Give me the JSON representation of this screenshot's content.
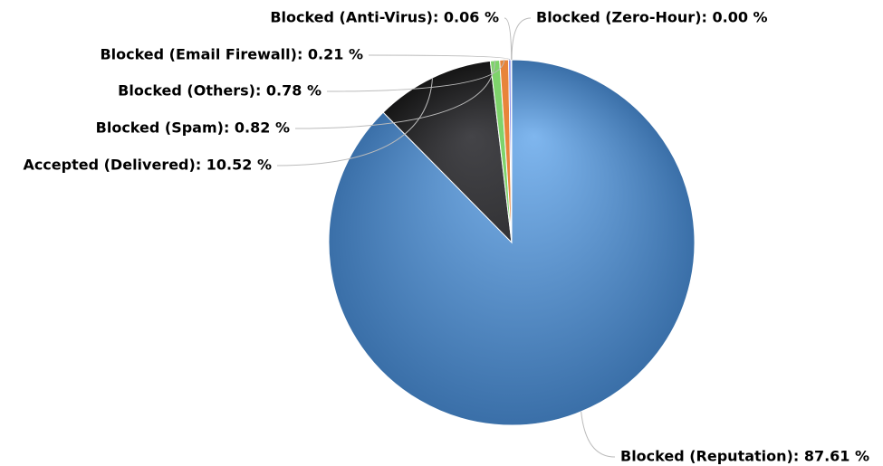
{
  "chart_data": {
    "type": "pie",
    "labels": [
      "Blocked (Reputation): 87.61 %",
      "Accepted (Delivered): 10.52 %",
      "Blocked (Spam): 0.82 %",
      "Blocked (Others): 0.78 %",
      "Blocked (Email Firewall): 0.21 %",
      "Blocked (Anti-Virus): 0.06 %",
      "Blocked (Zero-Hour): 0.00 %"
    ],
    "values": [
      87.61,
      10.52,
      0.82,
      0.78,
      0.21,
      0.06,
      0.0
    ],
    "colors": [
      "#5b95d0",
      "#2a2a2c",
      "#7ed36b",
      "#e8843a",
      "#8085e9",
      "#f15c80",
      "#e4d354"
    ]
  }
}
